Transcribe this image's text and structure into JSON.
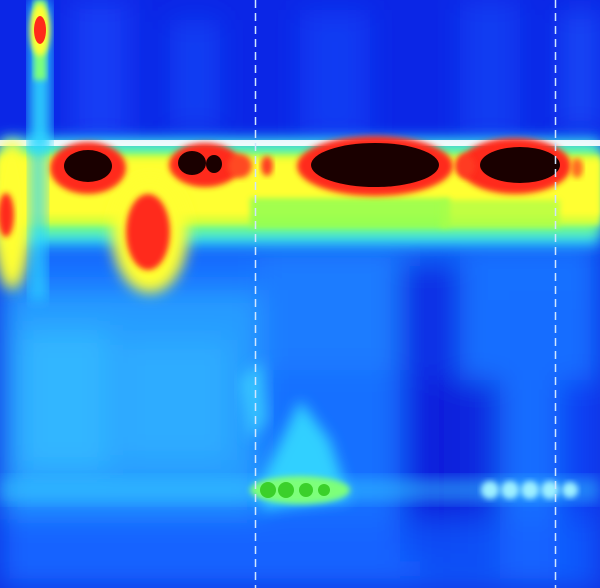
{
  "chart_data": {
    "type": "heatmap",
    "title": "",
    "xlabel": "",
    "ylabel": "",
    "colorscale": [
      "#0a1ee6",
      "#1e7cff",
      "#2fd8ff",
      "#7dff7a",
      "#ffff33",
      "#ff2a1a",
      "#1a0000"
    ],
    "background_color": "#0a2fe0",
    "marker_line_color": "#cfe6ff",
    "grid": false,
    "legend": "none",
    "vertical_markers": [
      0.425,
      0.925
    ],
    "features": [
      {
        "kind": "spike",
        "x": 0.065,
        "y": 0.04,
        "intensity": 6
      },
      {
        "kind": "spike",
        "x": 0.065,
        "y": 0.12,
        "intensity": 3
      },
      {
        "kind": "band",
        "y": 0.33,
        "intensity": 4,
        "x_start": 0.0,
        "x_end": 1.0
      },
      {
        "kind": "blob",
        "x": 0.145,
        "y": 0.285,
        "intensity": 6
      },
      {
        "kind": "blob",
        "x": 0.34,
        "y": 0.285,
        "intensity": 6
      },
      {
        "kind": "blob",
        "x": 0.625,
        "y": 0.29,
        "intensity": 6
      },
      {
        "kind": "blob",
        "x": 0.87,
        "y": 0.285,
        "intensity": 6
      },
      {
        "kind": "blob",
        "x": 0.24,
        "y": 0.4,
        "intensity": 5
      },
      {
        "kind": "blob",
        "x": 0.02,
        "y": 0.36,
        "intensity": 5
      },
      {
        "kind": "blob",
        "x": 0.52,
        "y": 0.83,
        "intensity": 3
      },
      {
        "kind": "blob",
        "x": 0.85,
        "y": 0.835,
        "intensity": 2
      }
    ]
  }
}
